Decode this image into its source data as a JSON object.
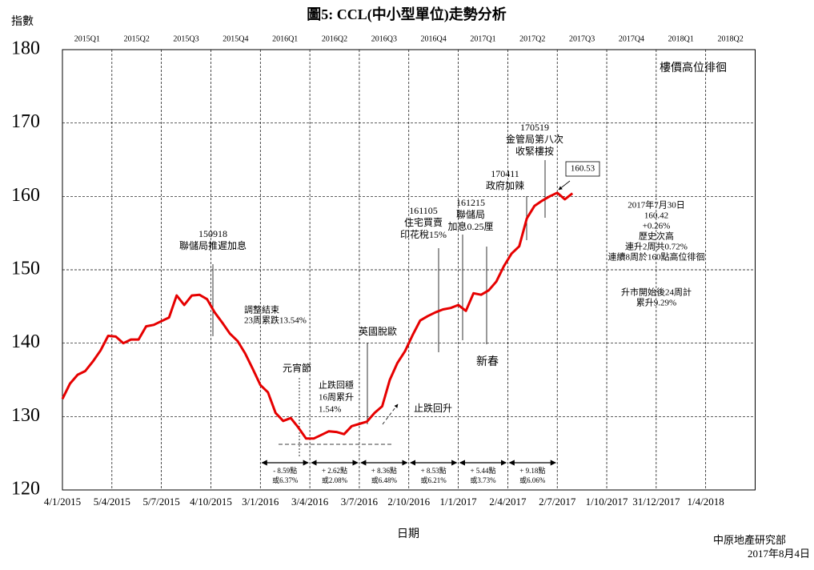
{
  "chart_data": {
    "type": "line",
    "title": "圖5: CCL(中小型單位)走勢分析",
    "ylabel": "指數",
    "xlabel": "日期",
    "source": "中原地產研究部",
    "date": "2017年8月4日",
    "color": "#e60000",
    "grid": true,
    "ylim": [
      120,
      180
    ],
    "yticks": [
      120,
      130,
      140,
      150,
      160,
      170,
      180
    ],
    "xlim": [
      "4/1/2015",
      "1/7/2018"
    ],
    "xticks": [
      "4/1/2015",
      "5/4/2015",
      "5/7/2015",
      "4/10/2015",
      "3/1/2016",
      "3/4/2016",
      "3/7/2016",
      "2/10/2016",
      "1/1/2017",
      "2/4/2017",
      "2/7/2017",
      "1/10/2017",
      "31/12/2017",
      "1/4/2018"
    ],
    "quarters": [
      "2015Q1",
      "2015Q2",
      "2015Q3",
      "2015Q4",
      "2016Q1",
      "2016Q2",
      "2016Q3",
      "2016Q4",
      "2017Q1",
      "2017Q2",
      "2017Q3",
      "2017Q4",
      "2018Q1",
      "2018Q2"
    ],
    "x": [
      "4/1/2015",
      "18/1/2015",
      "1/2/2015",
      "15/2/2015",
      "1/3/2015",
      "15/3/2015",
      "29/3/2015",
      "12/4/2015",
      "26/4/2015",
      "10/5/2015",
      "24/5/2015",
      "7/6/2015",
      "21/6/2015",
      "5/7/2015",
      "19/7/2015",
      "2/8/2015",
      "16/8/2015",
      "30/8/2015",
      "13/9/2015",
      "27/9/2015",
      "11/10/2015",
      "25/10/2015",
      "8/11/2015",
      "22/11/2015",
      "6/12/2015",
      "20/12/2015",
      "3/1/2016",
      "17/1/2016",
      "31/1/2016",
      "14/2/2016",
      "28/2/2016",
      "13/3/2016",
      "27/3/2016",
      "10/4/2016",
      "24/4/2016",
      "8/5/2016",
      "22/5/2016",
      "5/6/2016",
      "19/6/2016",
      "3/7/2016",
      "17/7/2016",
      "31/7/2016",
      "14/8/2016",
      "28/8/2016",
      "11/9/2016",
      "25/9/2016",
      "9/10/2016",
      "23/10/2016",
      "6/11/2016",
      "20/11/2016",
      "4/12/2016",
      "18/12/2016",
      "1/1/2017",
      "15/1/2017",
      "29/1/2017",
      "12/2/2017",
      "26/2/2017",
      "12/3/2017",
      "26/3/2017",
      "9/4/2017",
      "23/4/2017",
      "7/5/2017",
      "21/5/2017",
      "4/6/2017",
      "18/6/2017",
      "2/7/2017",
      "16/7/2017",
      "30/7/2017"
    ],
    "values": [
      132.4,
      134.5,
      135.7,
      136.2,
      137.5,
      139.0,
      141.0,
      140.9,
      140.0,
      140.5,
      140.5,
      142.3,
      142.5,
      143.0,
      143.5,
      146.5,
      145.2,
      146.5,
      146.6,
      146.0,
      144.2,
      142.8,
      141.3,
      140.3,
      138.6,
      136.5,
      134.3,
      133.3,
      130.5,
      129.4,
      129.8,
      128.5,
      127.0,
      127.0,
      127.5,
      128.0,
      127.9,
      127.6,
      128.7,
      129.0,
      129.3,
      130.5,
      131.4,
      135.0,
      137.3,
      138.9,
      141.1,
      143.1,
      143.7,
      144.2,
      144.6,
      144.8,
      145.2,
      144.4,
      146.8,
      146.6,
      147.2,
      148.4,
      150.5,
      152.2,
      153.2,
      157.0,
      158.7,
      159.4,
      160.0,
      160.5,
      159.6,
      160.42
    ],
    "annotations": [
      {
        "lines": [
          "樓價高位徘徊"
        ]
      },
      {
        "lines": [
          "170519",
          "金管局第八次",
          "收緊樓按"
        ]
      },
      {
        "lines": [
          "160.53"
        ]
      },
      {
        "lines": [
          "170411",
          "政府加辣"
        ]
      },
      {
        "lines": [
          "161215",
          "聯儲局",
          "加息0.25厘"
        ]
      },
      {
        "lines": [
          "161105",
          "住宅買賣",
          "印花稅15%"
        ]
      },
      {
        "lines": [
          "150918",
          "聯儲局推遲加息"
        ]
      },
      {
        "lines": [
          "2017年7月30日",
          "160.42",
          "+0.26%",
          "歷史次高",
          "連升2周共0.72%",
          "連續8周於160點高位徘徊"
        ]
      },
      {
        "lines": [
          "升市開始後24周計",
          "累升9.29%"
        ]
      },
      {
        "lines": [
          "調整結束",
          "23周累跌13.54%"
        ]
      },
      {
        "lines": [
          "英國脫歐"
        ]
      },
      {
        "lines": [
          "新春"
        ]
      },
      {
        "lines": [
          "元宵節"
        ]
      },
      {
        "lines": [
          "止跌回穩",
          "16周累升",
          "1.54%"
        ]
      },
      {
        "lines": [
          "止跌回升"
        ]
      }
    ],
    "changes": [
      {
        "lines": [
          "- 8.59點",
          "或6.37%"
        ]
      },
      {
        "lines": [
          "+ 2.62點",
          "或2.08%"
        ]
      },
      {
        "lines": [
          "+ 8.36點",
          "或6.48%"
        ]
      },
      {
        "lines": [
          "+ 8.53點",
          "或6.21%"
        ]
      },
      {
        "lines": [
          "+ 5.44點",
          "或3.73%"
        ]
      },
      {
        "lines": [
          "+ 9.18點",
          "或6.06%"
        ]
      }
    ]
  }
}
